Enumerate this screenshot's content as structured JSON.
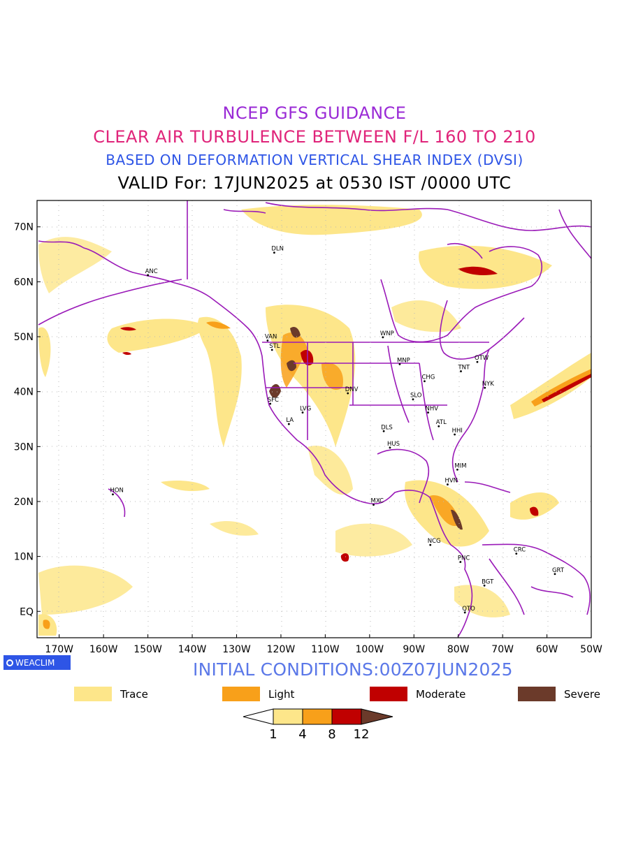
{
  "header": {
    "line1": "NCEP GFS GUIDANCE",
    "line2": "CLEAR AIR TURBULENCE BETWEEN F/L 160 TO 210",
    "line3": "BASED ON DEFORMATION VERTICAL SHEAR INDEX (DVSI)",
    "line4": "VALID For: 17JUN2025 at 0530 IST /0000 UTC"
  },
  "axes": {
    "lat_labels": [
      "70N",
      "60N",
      "50N",
      "40N",
      "30N",
      "20N",
      "10N",
      "EQ"
    ],
    "lat_values": [
      70,
      60,
      50,
      40,
      30,
      20,
      10,
      0
    ],
    "lon_labels": [
      "170W",
      "160W",
      "150W",
      "140W",
      "130W",
      "120W",
      "110W",
      "100W",
      "90W",
      "80W",
      "70W",
      "60W",
      "50W"
    ],
    "lon_values": [
      -170,
      -160,
      -150,
      -140,
      -130,
      -120,
      -110,
      -100,
      -90,
      -80,
      -70,
      -60,
      -50
    ]
  },
  "cities": [
    {
      "name": "ANC",
      "lon": -150,
      "lat": 61.2
    },
    {
      "name": "DLN",
      "lon": -121.5,
      "lat": 65.3
    },
    {
      "name": "VAN",
      "lon": -123,
      "lat": 49.3
    },
    {
      "name": "STL",
      "lon": -122,
      "lat": 47.6
    },
    {
      "name": "WNP",
      "lon": -97,
      "lat": 49.9
    },
    {
      "name": "MNP",
      "lon": -93.2,
      "lat": 45
    },
    {
      "name": "OTW",
      "lon": -75.7,
      "lat": 45.4
    },
    {
      "name": "TNT",
      "lon": -79.4,
      "lat": 43.7
    },
    {
      "name": "CHG",
      "lon": -87.6,
      "lat": 41.9
    },
    {
      "name": "NYK",
      "lon": -74,
      "lat": 40.7
    },
    {
      "name": "DNV",
      "lon": -104.9,
      "lat": 39.7
    },
    {
      "name": "SFC",
      "lon": -122.4,
      "lat": 37.8
    },
    {
      "name": "SLO",
      "lon": -90.2,
      "lat": 38.6
    },
    {
      "name": "LVG",
      "lon": -115.1,
      "lat": 36.2
    },
    {
      "name": "NHV",
      "lon": -86.8,
      "lat": 36.2
    },
    {
      "name": "LA",
      "lon": -118.2,
      "lat": 34.1
    },
    {
      "name": "ATL",
      "lon": -84.4,
      "lat": 33.7
    },
    {
      "name": "DLS",
      "lon": -96.8,
      "lat": 32.8
    },
    {
      "name": "HHI",
      "lon": -80.8,
      "lat": 32.2
    },
    {
      "name": "HUS",
      "lon": -95.4,
      "lat": 29.8
    },
    {
      "name": "MIM",
      "lon": -80.2,
      "lat": 25.8
    },
    {
      "name": "HVN",
      "lon": -82.4,
      "lat": 23.1
    },
    {
      "name": "HON",
      "lon": -157.9,
      "lat": 21.3
    },
    {
      "name": "MXC",
      "lon": -99.1,
      "lat": 19.4
    },
    {
      "name": "NCG",
      "lon": -86.3,
      "lat": 12.1
    },
    {
      "name": "CRC",
      "lon": -66.9,
      "lat": 10.5
    },
    {
      "name": "PNC",
      "lon": -79.5,
      "lat": 9
    },
    {
      "name": "GRT",
      "lon": -58.2,
      "lat": 6.8
    },
    {
      "name": "BGT",
      "lon": -74.1,
      "lat": 4.7
    },
    {
      "name": "QTO",
      "lon": -78.5,
      "lat": -0.2
    }
  ],
  "initial": "INITIAL CONDITIONS:00Z07JUN2025",
  "badge": "WEACLIM",
  "legend": [
    {
      "label": "Trace",
      "color": "#fde68a"
    },
    {
      "label": "Light",
      "color": "#f8a01a"
    },
    {
      "label": "Moderate",
      "color": "#c00000"
    },
    {
      "label": "Severe",
      "color": "#6b3a2a"
    }
  ],
  "colorbar": {
    "labels": [
      "1",
      "4",
      "8",
      "12"
    ],
    "colors": [
      "#fde68a",
      "#f8a01a",
      "#c00000",
      "#6b3a2a"
    ]
  }
}
